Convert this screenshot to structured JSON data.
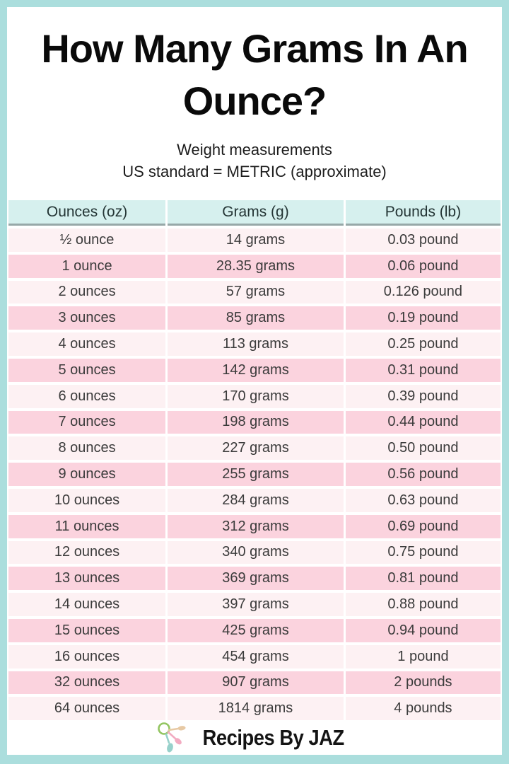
{
  "header": {
    "title_line1": "How Many Grams In An",
    "title_line2": "Ounce?",
    "subtitle_line1": "Weight measurements",
    "subtitle_line2": "US standard = METRIC (approximate)"
  },
  "table": {
    "columns": [
      "Ounces (oz)",
      "Grams (g)",
      "Pounds (lb)"
    ],
    "rows": [
      [
        "½ ounce",
        "14 grams",
        "0.03 pound"
      ],
      [
        "1 ounce",
        "28.35 grams",
        "0.06 pound"
      ],
      [
        "2 ounces",
        "57 grams",
        "0.126 pound"
      ],
      [
        "3 ounces",
        "85 grams",
        "0.19 pound"
      ],
      [
        "4 ounces",
        "113 grams",
        "0.25 pound"
      ],
      [
        "5 ounces",
        "142 grams",
        "0.31 pound"
      ],
      [
        "6 ounces",
        "170 grams",
        "0.39 pound"
      ],
      [
        "7 ounces",
        "198 grams",
        "0.44 pound"
      ],
      [
        "8 ounces",
        "227 grams",
        "0.50 pound"
      ],
      [
        "9 ounces",
        "255 grams",
        "0.56 pound"
      ],
      [
        "10 ounces",
        "284 grams",
        "0.63 pound"
      ],
      [
        "11 ounces",
        "312 grams",
        "0.69 pound"
      ],
      [
        "12 ounces",
        "340 grams",
        "0.75 pound"
      ],
      [
        "13 ounces",
        "369 grams",
        "0.81 pound"
      ],
      [
        "14 ounces",
        "397 grams",
        "0.88 pound"
      ],
      [
        "15 ounces",
        "425 grams",
        "0.94 pound"
      ],
      [
        "16 ounces",
        "454 grams",
        "1 pound"
      ],
      [
        "32 ounces",
        "907 grams",
        "2 pounds"
      ],
      [
        "64 ounces",
        "1814 grams",
        "4 pounds"
      ]
    ]
  },
  "chart_data": {
    "type": "table",
    "title": "How Many Grams In An Ounce?",
    "subtitle": [
      "Weight measurements",
      "US standard = METRIC (approximate)"
    ],
    "columns": [
      "Ounces (oz)",
      "Grams (g)",
      "Pounds (lb)"
    ],
    "ounces": [
      0.5,
      1,
      2,
      3,
      4,
      5,
      6,
      7,
      8,
      9,
      10,
      11,
      12,
      13,
      14,
      15,
      16,
      32,
      64
    ],
    "grams": [
      14,
      28.35,
      57,
      85,
      113,
      142,
      170,
      198,
      227,
      255,
      284,
      312,
      340,
      369,
      397,
      425,
      454,
      907,
      1814
    ],
    "pounds": [
      0.03,
      0.06,
      0.126,
      0.19,
      0.25,
      0.31,
      0.39,
      0.44,
      0.5,
      0.56,
      0.63,
      0.69,
      0.75,
      0.81,
      0.88,
      0.94,
      1,
      2,
      4
    ]
  },
  "footer": {
    "brand": "Recipes By JAZ",
    "logo_icon": "measuring-spoons-icon",
    "logo_colors": {
      "ring": "#93c561",
      "spoon_tan": "#e7c9a4",
      "spoon_pink": "#f2abc1",
      "spoon_teal": "#97d1cb"
    }
  },
  "colors": {
    "border_teal": "#abdedd",
    "header_cyan": "#d6f0ee",
    "header_underline": "#97a8a8",
    "row_light": "#fdf1f3",
    "row_dark": "#fbd3de"
  }
}
